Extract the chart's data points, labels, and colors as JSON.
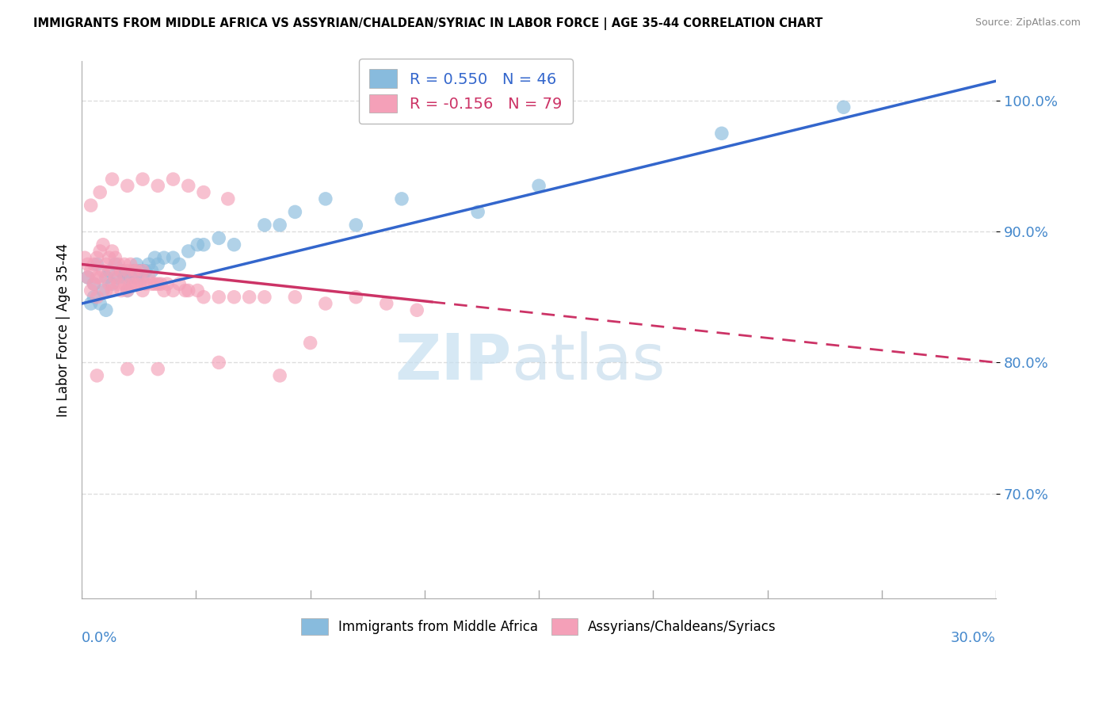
{
  "title": "IMMIGRANTS FROM MIDDLE AFRICA VS ASSYRIAN/CHALDEAN/SYRIAC IN LABOR FORCE | AGE 35-44 CORRELATION CHART",
  "source": "Source: ZipAtlas.com",
  "ylabel": "In Labor Force | Age 35-44",
  "xlim": [
    0.0,
    30.0
  ],
  "ylim": [
    62.0,
    103.0
  ],
  "yticks": [
    70.0,
    80.0,
    90.0,
    100.0
  ],
  "ytick_labels": [
    "70.0%",
    "80.0%",
    "90.0%",
    "100.0%"
  ],
  "blue_R": 0.55,
  "blue_N": 46,
  "pink_R": -0.156,
  "pink_N": 79,
  "blue_color": "#88bbdd",
  "pink_color": "#f4a0b8",
  "blue_line_color": "#3366cc",
  "pink_line_color": "#cc3366",
  "background_color": "#ffffff",
  "grid_color": "#dddddd",
  "axis_color": "#aaaaaa",
  "tick_color": "#4488cc",
  "blue_scatter_x": [
    0.2,
    0.3,
    0.4,
    0.5,
    0.6,
    0.7,
    0.8,
    0.9,
    1.0,
    1.1,
    1.2,
    1.3,
    1.4,
    1.5,
    1.6,
    1.7,
    1.8,
    1.9,
    2.0,
    2.1,
    2.2,
    2.3,
    2.5,
    2.7,
    3.0,
    3.2,
    3.5,
    4.0,
    4.5,
    5.0,
    6.0,
    7.0,
    8.0,
    9.0,
    10.5,
    13.0,
    15.0,
    21.0,
    25.0,
    0.4,
    0.8,
    1.3,
    1.8,
    2.4,
    3.8,
    6.5
  ],
  "blue_scatter_y": [
    86.5,
    84.5,
    86.0,
    87.5,
    84.5,
    85.5,
    84.0,
    87.0,
    86.0,
    87.5,
    86.5,
    87.0,
    86.5,
    85.5,
    86.5,
    87.0,
    86.5,
    87.0,
    86.5,
    87.0,
    87.5,
    87.0,
    87.5,
    88.0,
    88.0,
    87.5,
    88.5,
    89.0,
    89.5,
    89.0,
    90.5,
    91.5,
    92.5,
    90.5,
    92.5,
    91.5,
    93.5,
    97.5,
    99.5,
    85.0,
    86.5,
    87.0,
    87.5,
    88.0,
    89.0,
    90.5
  ],
  "pink_scatter_x": [
    0.1,
    0.2,
    0.2,
    0.3,
    0.3,
    0.4,
    0.4,
    0.5,
    0.5,
    0.5,
    0.6,
    0.6,
    0.7,
    0.7,
    0.8,
    0.8,
    0.9,
    0.9,
    1.0,
    1.0,
    1.0,
    1.1,
    1.1,
    1.2,
    1.2,
    1.3,
    1.3,
    1.4,
    1.4,
    1.5,
    1.5,
    1.6,
    1.6,
    1.7,
    1.7,
    1.8,
    1.8,
    1.9,
    2.0,
    2.0,
    2.1,
    2.2,
    2.3,
    2.4,
    2.5,
    2.6,
    2.7,
    2.8,
    3.0,
    3.2,
    3.4,
    3.5,
    3.8,
    4.0,
    4.5,
    5.0,
    5.5,
    6.0,
    7.0,
    7.5,
    8.0,
    9.0,
    10.0,
    11.0,
    0.3,
    0.6,
    1.0,
    1.5,
    2.0,
    2.5,
    3.0,
    3.5,
    4.0,
    4.8,
    0.5,
    1.5,
    2.5,
    4.5,
    6.5
  ],
  "pink_scatter_y": [
    88.0,
    86.5,
    87.5,
    85.5,
    87.0,
    86.0,
    87.5,
    85.0,
    86.5,
    88.0,
    86.5,
    88.5,
    87.0,
    89.0,
    85.5,
    87.5,
    86.0,
    88.0,
    85.5,
    87.0,
    88.5,
    86.5,
    88.0,
    86.0,
    87.5,
    85.5,
    87.0,
    86.0,
    87.5,
    85.5,
    87.0,
    86.0,
    87.5,
    86.0,
    87.0,
    86.0,
    87.0,
    86.0,
    85.5,
    87.0,
    86.0,
    86.5,
    86.0,
    86.0,
    86.0,
    86.0,
    85.5,
    86.0,
    85.5,
    86.0,
    85.5,
    85.5,
    85.5,
    85.0,
    85.0,
    85.0,
    85.0,
    85.0,
    85.0,
    81.5,
    84.5,
    85.0,
    84.5,
    84.0,
    92.0,
    93.0,
    94.0,
    93.5,
    94.0,
    93.5,
    94.0,
    93.5,
    93.0,
    92.5,
    79.0,
    79.5,
    79.5,
    80.0,
    79.0
  ],
  "blue_trend_x0": 0.0,
  "blue_trend_y0": 84.5,
  "blue_trend_x1": 30.0,
  "blue_trend_y1": 101.5,
  "pink_trend_x0": 0.0,
  "pink_trend_y0": 87.5,
  "pink_trend_x1": 30.0,
  "pink_trend_y1": 80.0,
  "pink_solid_end_x": 11.5,
  "watermark_zip_color": "#c5dff0",
  "watermark_atlas_color": "#b8d4e8"
}
